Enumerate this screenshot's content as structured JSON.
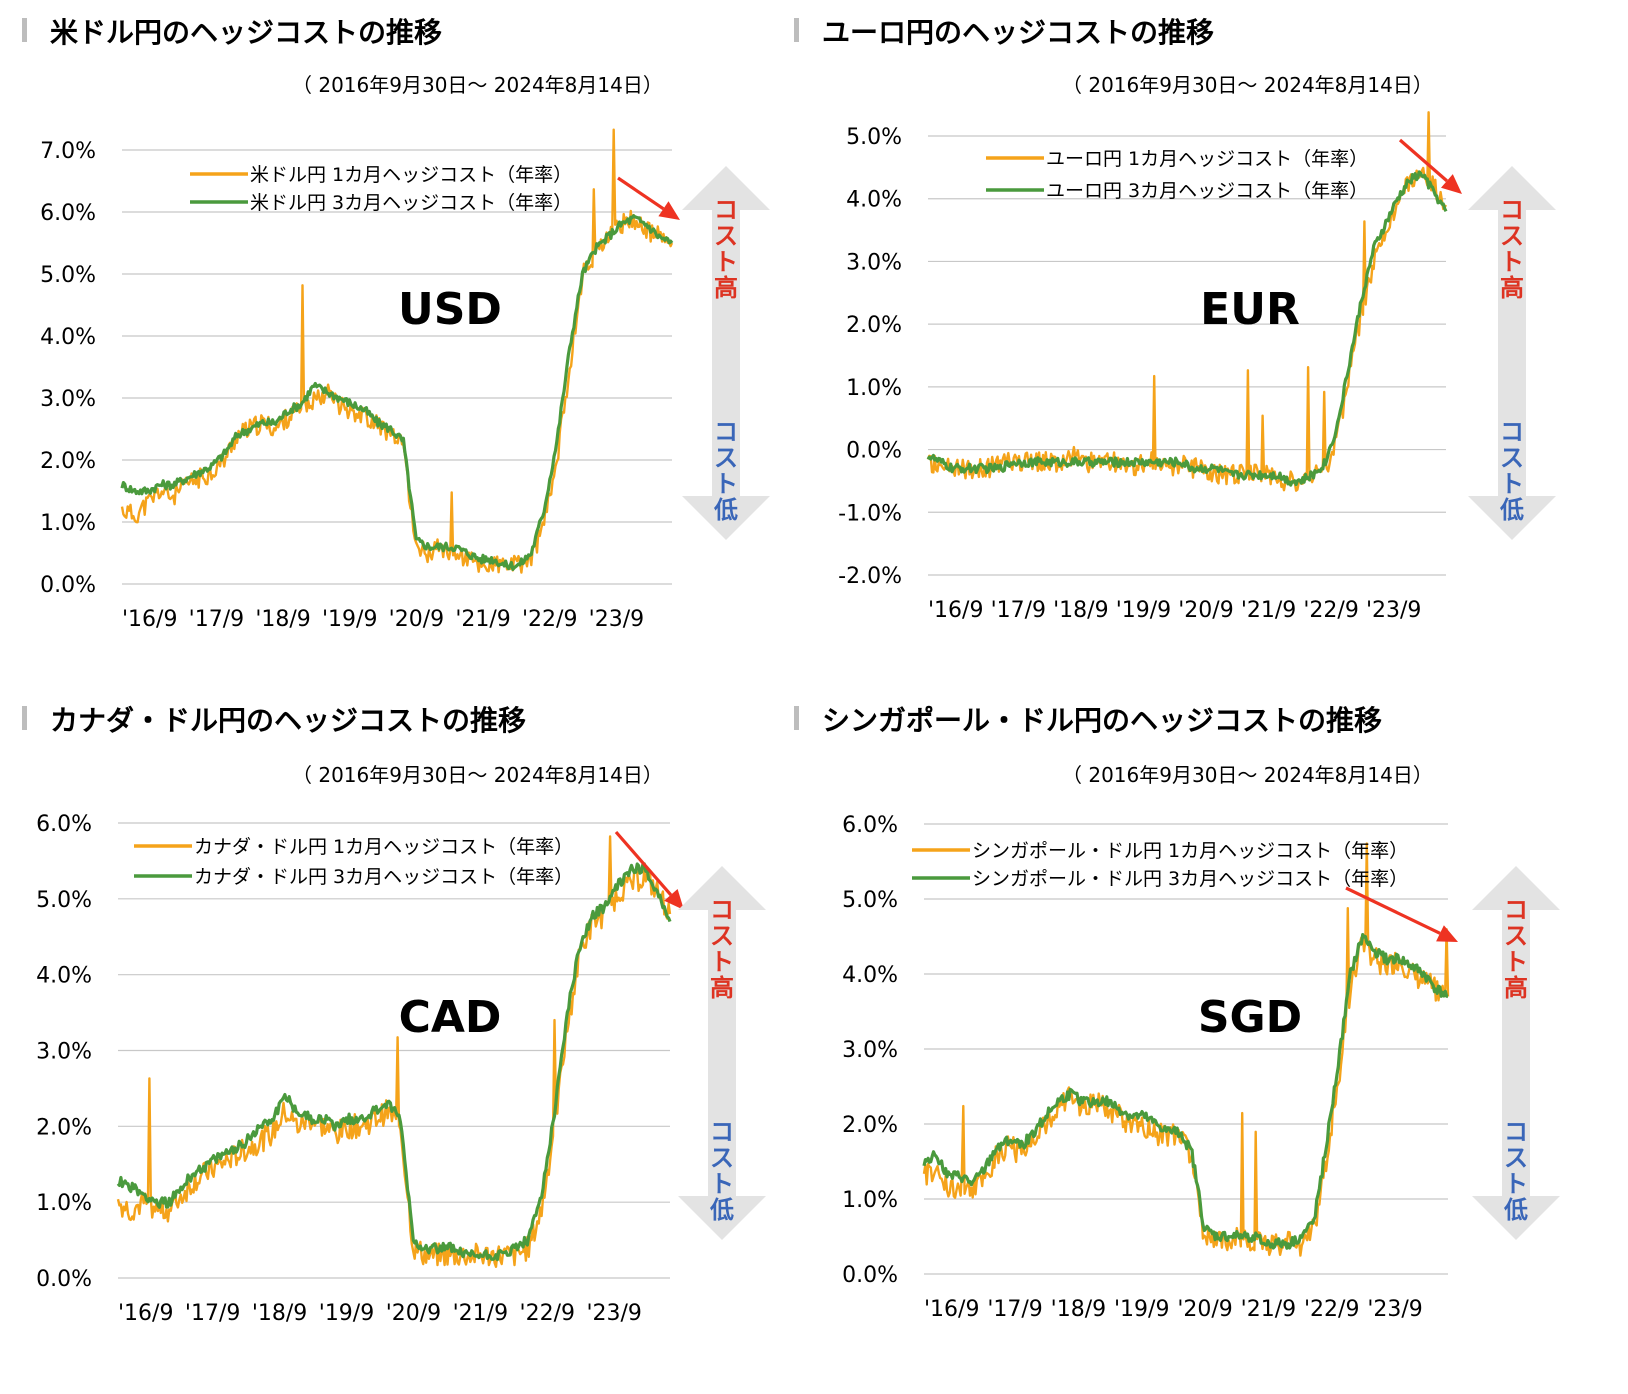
{
  "colors": {
    "one_month": "#F5A31A",
    "three_month": "#4A9A3D",
    "grid": "#c8c8c8",
    "arrow_trend": "#EE3322",
    "cost_high": "#DD3322",
    "cost_low": "#3A66B8",
    "cost_arrow": "#E3E3E3"
  },
  "labels": {
    "cost_high": "コスト高",
    "cost_low": "コスト低"
  },
  "chart_data": [
    {
      "type": "line",
      "title": "米ドル円のヘッジコストの推移",
      "subtitle": "（ 2016年9月30日～ 2024年8月14日）",
      "code": "USD",
      "y_ticks": [
        "7.0%",
        "6.0%",
        "5.0%",
        "4.0%",
        "3.0%",
        "2.0%",
        "1.0%",
        "0.0%"
      ],
      "ylim": [
        0,
        7
      ],
      "x_ticks": [
        "'16/9",
        "'17/9",
        "'18/9",
        "'19/9",
        "'20/9",
        "'21/9",
        "'22/9",
        "'23/9"
      ],
      "series": [
        {
          "name": "米ドル円 1カ月ヘッジコスト（年率）",
          "values": [
            1.2,
            1.1,
            1.3,
            1.5,
            1.4,
            1.6,
            1.7,
            1.8,
            2.0,
            2.4,
            2.5,
            2.6,
            2.5,
            2.7,
            2.8,
            3.0,
            3.1,
            2.9,
            2.8,
            2.7,
            2.6,
            2.4,
            2.2,
            0.6,
            0.5,
            0.6,
            0.5,
            0.4,
            0.3,
            0.3,
            0.3,
            0.3,
            0.4,
            1.0,
            2.0,
            3.5,
            5.0,
            5.3,
            5.6,
            5.8,
            5.9,
            5.7,
            5.6,
            5.5
          ]
        },
        {
          "name": "米ドル円 3カ月ヘッジコスト（年率）",
          "values": [
            1.6,
            1.5,
            1.5,
            1.6,
            1.6,
            1.7,
            1.8,
            1.9,
            2.1,
            2.4,
            2.5,
            2.6,
            2.6,
            2.8,
            2.9,
            3.2,
            3.1,
            3.0,
            2.9,
            2.8,
            2.6,
            2.5,
            2.3,
            0.7,
            0.6,
            0.6,
            0.6,
            0.5,
            0.4,
            0.4,
            0.3,
            0.3,
            0.5,
            1.2,
            2.3,
            3.8,
            5.0,
            5.4,
            5.6,
            5.8,
            5.9,
            5.8,
            5.6,
            5.5
          ]
        }
      ]
    },
    {
      "type": "line",
      "title": "ユーロ円のヘッジコストの推移",
      "subtitle": "（ 2016年9月30日～ 2024年8月14日）",
      "code": "EUR",
      "y_ticks": [
        "5.0%",
        "4.0%",
        "3.0%",
        "2.0%",
        "1.0%",
        "0.0%",
        "-1.0%",
        "-2.0%"
      ],
      "ylim": [
        -2,
        5
      ],
      "x_ticks": [
        "'16/9",
        "'17/9",
        "'18/9",
        "'19/9",
        "'20/9",
        "'21/9",
        "'22/9",
        "'23/9"
      ],
      "series": [
        {
          "name": "ユーロ円 1カ月ヘッジコスト（年率）",
          "values": [
            -0.2,
            -0.3,
            -0.3,
            -0.3,
            -0.3,
            -0.3,
            -0.2,
            -0.2,
            -0.2,
            -0.2,
            -0.2,
            -0.2,
            -0.1,
            -0.2,
            -0.2,
            -0.2,
            -0.2,
            -0.3,
            -0.2,
            -0.2,
            -0.3,
            -0.2,
            -0.3,
            -0.3,
            -0.4,
            -0.4,
            -0.4,
            -0.4,
            -0.4,
            -0.5,
            -0.5,
            -0.5,
            -0.4,
            -0.3,
            0.2,
            1.2,
            2.2,
            3.0,
            3.5,
            3.9,
            4.3,
            4.4,
            4.2,
            3.9
          ]
        },
        {
          "name": "ユーロ円 3カ月ヘッジコスト（年率）",
          "values": [
            -0.1,
            -0.2,
            -0.3,
            -0.3,
            -0.3,
            -0.3,
            -0.3,
            -0.2,
            -0.2,
            -0.2,
            -0.2,
            -0.2,
            -0.2,
            -0.2,
            -0.2,
            -0.2,
            -0.2,
            -0.2,
            -0.2,
            -0.2,
            -0.2,
            -0.2,
            -0.3,
            -0.3,
            -0.3,
            -0.4,
            -0.4,
            -0.4,
            -0.4,
            -0.4,
            -0.5,
            -0.5,
            -0.4,
            -0.2,
            0.4,
            1.4,
            2.4,
            3.2,
            3.6,
            4.0,
            4.3,
            4.4,
            4.1,
            3.8
          ]
        }
      ]
    },
    {
      "type": "line",
      "title": "カナダ・ドル円のヘッジコストの推移",
      "subtitle": "（ 2016年9月30日～ 2024年8月14日）",
      "code": "CAD",
      "y_ticks": [
        "6.0%",
        "5.0%",
        "4.0%",
        "3.0%",
        "2.0%",
        "1.0%",
        "0.0%"
      ],
      "ylim": [
        0,
        6
      ],
      "x_ticks": [
        "'16/9",
        "'17/9",
        "'18/9",
        "'19/9",
        "'20/9",
        "'21/9",
        "'22/9",
        "'23/9"
      ],
      "series": [
        {
          "name": "カナダ・ドル円 1カ月ヘッジコスト（年率）",
          "values": [
            1.0,
            0.9,
            1.0,
            0.9,
            0.9,
            1.1,
            1.3,
            1.4,
            1.5,
            1.6,
            1.7,
            1.8,
            1.9,
            2.2,
            2.0,
            2.1,
            2.0,
            1.9,
            2.0,
            2.0,
            2.1,
            2.2,
            2.0,
            0.4,
            0.3,
            0.3,
            0.3,
            0.3,
            0.3,
            0.3,
            0.3,
            0.3,
            0.4,
            0.9,
            2.0,
            3.3,
            4.3,
            4.7,
            4.8,
            5.1,
            5.2,
            5.3,
            5.1,
            4.8
          ]
        },
        {
          "name": "カナダ・ドル円 3カ月ヘッジコスト（年率）",
          "values": [
            1.3,
            1.2,
            1.1,
            1.0,
            1.0,
            1.2,
            1.4,
            1.5,
            1.6,
            1.7,
            1.8,
            2.0,
            2.1,
            2.4,
            2.2,
            2.1,
            2.1,
            2.0,
            2.1,
            2.1,
            2.2,
            2.3,
            2.1,
            0.5,
            0.4,
            0.4,
            0.4,
            0.3,
            0.3,
            0.3,
            0.3,
            0.4,
            0.5,
            1.1,
            2.2,
            3.5,
            4.4,
            4.8,
            4.9,
            5.2,
            5.4,
            5.4,
            5.1,
            4.7
          ]
        }
      ]
    },
    {
      "type": "line",
      "title": "シンガポール・ドル円のヘッジコストの推移",
      "subtitle": "（ 2016年9月30日～ 2024年8月14日）",
      "code": "SGD",
      "y_ticks": [
        "6.0%",
        "5.0%",
        "4.0%",
        "3.0%",
        "2.0%",
        "1.0%",
        "0.0%"
      ],
      "ylim": [
        0,
        6
      ],
      "x_ticks": [
        "'16/9",
        "'17/9",
        "'18/9",
        "'19/9",
        "'20/9",
        "'21/9",
        "'22/9",
        "'23/9"
      ],
      "series": [
        {
          "name": "シンガポール・ドル円 1カ月ヘッジコスト（年率）",
          "values": [
            1.3,
            1.4,
            1.1,
            1.2,
            1.1,
            1.3,
            1.6,
            1.7,
            1.6,
            1.8,
            2.0,
            2.2,
            2.4,
            2.2,
            2.3,
            2.2,
            2.1,
            2.0,
            2.0,
            1.9,
            1.8,
            1.9,
            1.5,
            0.5,
            0.5,
            0.4,
            0.5,
            0.4,
            0.4,
            0.4,
            0.4,
            0.4,
            0.6,
            1.5,
            2.6,
            3.8,
            4.4,
            4.2,
            4.1,
            4.2,
            4.0,
            3.9,
            3.8,
            3.7
          ]
        },
        {
          "name": "シンガポール・ドル円 3カ月ヘッジコスト（年率）",
          "values": [
            1.5,
            1.6,
            1.3,
            1.3,
            1.2,
            1.4,
            1.7,
            1.8,
            1.7,
            1.9,
            2.1,
            2.3,
            2.4,
            2.3,
            2.3,
            2.3,
            2.2,
            2.1,
            2.1,
            2.0,
            1.9,
            1.9,
            1.6,
            0.6,
            0.5,
            0.5,
            0.5,
            0.5,
            0.4,
            0.4,
            0.4,
            0.5,
            0.7,
            1.7,
            2.8,
            4.0,
            4.5,
            4.3,
            4.2,
            4.2,
            4.1,
            4.0,
            3.8,
            3.7
          ]
        }
      ]
    }
  ]
}
